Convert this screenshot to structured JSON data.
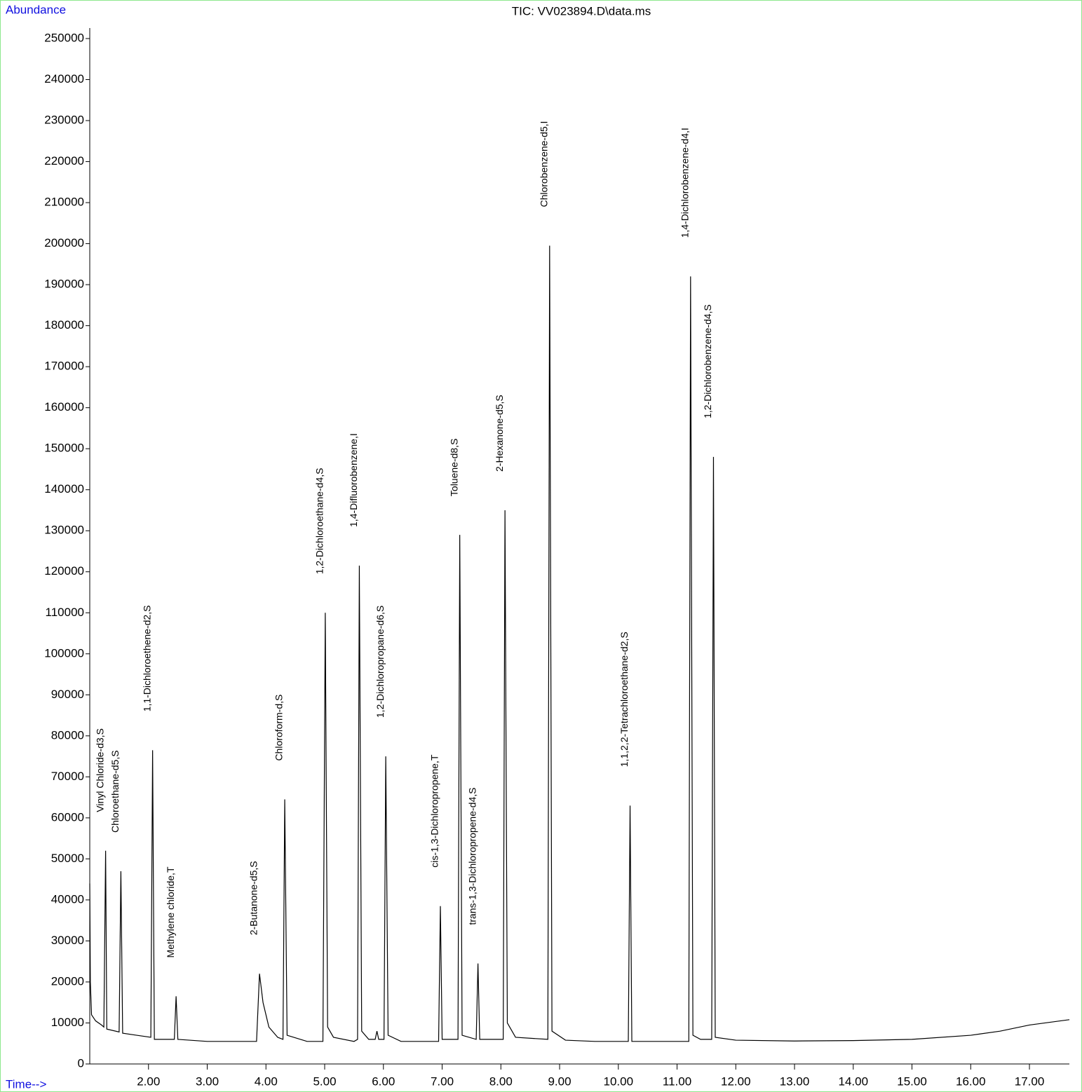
{
  "chart_data": {
    "type": "line",
    "title": "TIC: VV023894.D\\data.ms",
    "y_label": "Abundance",
    "x_label": "Time-->",
    "xlim": [
      1.0,
      17.68
    ],
    "ylim": [
      0,
      250000
    ],
    "xticks": [
      {
        "value": 2,
        "label": "2.00"
      },
      {
        "value": 3,
        "label": "3.00"
      },
      {
        "value": 4,
        "label": "4.00"
      },
      {
        "value": 5,
        "label": "5.00"
      },
      {
        "value": 6,
        "label": "6.00"
      },
      {
        "value": 7,
        "label": "7.00"
      },
      {
        "value": 8,
        "label": "8.00"
      },
      {
        "value": 9,
        "label": "9.00"
      },
      {
        "value": 10,
        "label": "10.00"
      },
      {
        "value": 11,
        "label": "11.00"
      },
      {
        "value": 12,
        "label": "12.00"
      },
      {
        "value": 13,
        "label": "13.00"
      },
      {
        "value": 14,
        "label": "14.00"
      },
      {
        "value": 15,
        "label": "15.00"
      },
      {
        "value": 16,
        "label": "16.00"
      },
      {
        "value": 17,
        "label": "17.00"
      }
    ],
    "yticks": [
      0,
      10000,
      20000,
      30000,
      40000,
      50000,
      60000,
      70000,
      80000,
      90000,
      100000,
      110000,
      120000,
      130000,
      140000,
      150000,
      160000,
      170000,
      180000,
      190000,
      200000,
      210000,
      220000,
      230000,
      240000,
      250000
    ],
    "grid": false,
    "series": [
      {
        "color": "#000000",
        "x": [
          1.0,
          1.01,
          1.03,
          1.1,
          1.2,
          1.24,
          1.27,
          1.29,
          1.5,
          1.53,
          1.56,
          1.8,
          2.04,
          2.07,
          2.1,
          2.44,
          2.47,
          2.5,
          3.0,
          3.5,
          3.84,
          3.89,
          3.95,
          4.05,
          4.2,
          4.29,
          4.32,
          4.36,
          4.7,
          4.97,
          5.01,
          5.05,
          5.15,
          5.5,
          5.56,
          5.59,
          5.63,
          5.75,
          5.86,
          5.89,
          5.92,
          6.01,
          6.04,
          6.08,
          6.3,
          6.94,
          6.97,
          7.0,
          7.27,
          7.3,
          7.34,
          7.58,
          7.61,
          7.64,
          8.04,
          8.07,
          8.11,
          8.25,
          8.8,
          8.83,
          8.87,
          9.1,
          9.6,
          10.17,
          10.2,
          10.23,
          10.8,
          11.2,
          11.23,
          11.27,
          11.4,
          11.59,
          11.62,
          11.65,
          12.0,
          13.0,
          14.0,
          15.0,
          16.0,
          16.5,
          17.0,
          17.68
        ],
        "values": [
          44000,
          20000,
          12000,
          10500,
          9500,
          9000,
          52000,
          8500,
          7800,
          47000,
          7500,
          7000,
          6500,
          76500,
          6000,
          6000,
          16500,
          6000,
          5500,
          5500,
          5500,
          22000,
          15000,
          9000,
          6500,
          6000,
          64500,
          7000,
          5500,
          5500,
          110000,
          9000,
          6500,
          5500,
          6000,
          121500,
          8000,
          6000,
          6000,
          8000,
          6000,
          6000,
          75000,
          7000,
          5500,
          5500,
          38500,
          6000,
          6000,
          129000,
          7000,
          6000,
          24500,
          6000,
          6000,
          135000,
          10000,
          6500,
          6000,
          199500,
          8000,
          5800,
          5500,
          5500,
          63000,
          5500,
          5500,
          5500,
          192000,
          7000,
          6000,
          6000,
          148000,
          6500,
          5800,
          5600,
          5700,
          6000,
          7000,
          8000,
          9500,
          10800
        ]
      }
    ],
    "annotations": [
      {
        "text": "Vinyl Chloride-d3,S",
        "x": 1.27
      },
      {
        "text": "Chloroethane-d5,S",
        "x": 1.53
      },
      {
        "text": "1,1-Dichloroethene-d2,S",
        "x": 2.07
      },
      {
        "text": "Methylene chloride,T",
        "x": 2.47
      },
      {
        "text": "2-Butanone-d5,S",
        "x": 3.89
      },
      {
        "text": "Chloroform-d,S",
        "x": 4.32
      },
      {
        "text": "1,2-Dichloroethane-d4,S",
        "x": 5.01
      },
      {
        "text": "1,4-Difluorobenzene,I",
        "x": 5.59
      },
      {
        "text": "1,2-Dichloropropane-d6,S",
        "x": 6.04
      },
      {
        "text": "cis-1,3-Dichloropropene,T",
        "x": 6.97
      },
      {
        "text": "Toluene-d8,S",
        "x": 7.3
      },
      {
        "text": "trans-1,3-Dichloropropene-d4,S",
        "x": 7.61
      },
      {
        "text": "2-Hexanone-d5,S",
        "x": 8.07
      },
      {
        "text": "Chlorobenzene-d5,I",
        "x": 8.83
      },
      {
        "text": "1,1,2,2-Tetrachloroethane-d2,S",
        "x": 10.2
      },
      {
        "text": "1,4-Dichlorobenzene-d4,I",
        "x": 11.23
      },
      {
        "text": "1,2-Dichlorobenzene-d4,S",
        "x": 11.62
      }
    ]
  }
}
